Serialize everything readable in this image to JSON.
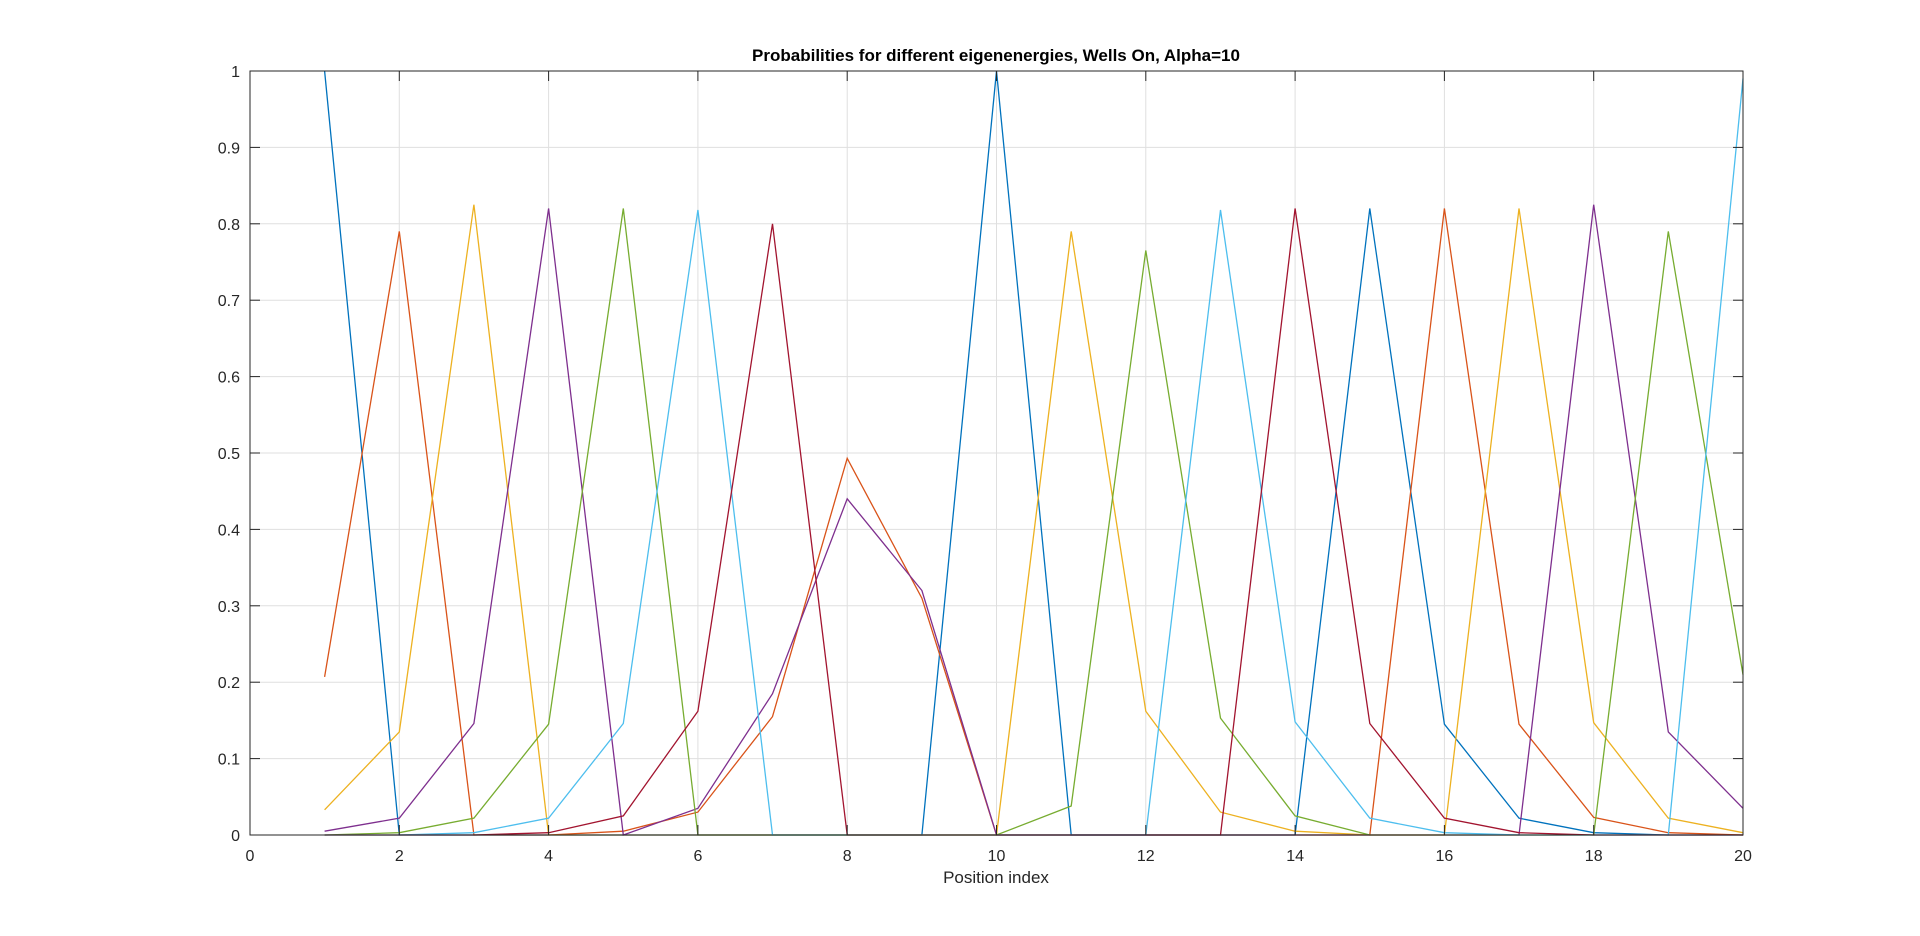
{
  "chart_data": {
    "type": "line",
    "title": "Probabilities for different eigenenergies, Wells On, Alpha=10",
    "xlabel": "Position index",
    "ylabel": "",
    "xlim": [
      0,
      20
    ],
    "ylim": [
      0,
      1
    ],
    "xticks": [
      0,
      2,
      4,
      6,
      8,
      10,
      12,
      14,
      16,
      18,
      20
    ],
    "yticks": [
      0,
      0.1,
      0.2,
      0.3,
      0.4,
      0.5,
      0.6,
      0.7,
      0.8,
      0.9,
      1
    ],
    "xtick_labels": [
      "0",
      "2",
      "4",
      "6",
      "8",
      "10",
      "12",
      "14",
      "16",
      "18",
      "20"
    ],
    "ytick_labels": [
      "0",
      "0.1",
      "0.2",
      "0.3",
      "0.4",
      "0.5",
      "0.6",
      "0.7",
      "0.8",
      "0.9",
      "1"
    ],
    "grid": true,
    "legend": "none",
    "x": [
      1,
      2,
      3,
      4,
      5,
      6,
      7,
      8,
      9,
      10,
      11,
      12,
      13,
      14,
      15,
      16,
      17,
      18,
      19,
      20
    ],
    "series": [
      {
        "color": "#0072BD",
        "values": [
          1.0,
          0.0,
          0.0,
          0.0,
          0.0,
          0.0,
          0.0,
          0.0,
          0.0,
          1.0,
          0.0,
          0.0,
          0.0,
          0.0,
          0.82,
          0.145,
          0.022,
          0.003,
          0.0,
          0.0
        ]
      },
      {
        "color": "#D95319",
        "values": [
          0.207,
          0.79,
          0.0,
          0.0,
          0.005,
          0.03,
          0.155,
          0.493,
          0.31,
          0.0,
          0.0,
          0.0,
          0.0,
          0.0,
          0.0,
          0.82,
          0.145,
          0.023,
          0.003,
          0.0
        ]
      },
      {
        "color": "#EDB120",
        "values": [
          0.033,
          0.135,
          0.825,
          0.0,
          0.0,
          0.0,
          0.0,
          0.0,
          0.0,
          0.0,
          0.79,
          0.162,
          0.03,
          0.005,
          0.0,
          0.0,
          0.82,
          0.147,
          0.022,
          0.003
        ]
      },
      {
        "color": "#7E2F8E",
        "values": [
          0.005,
          0.022,
          0.146,
          0.82,
          0.0,
          0.035,
          0.185,
          0.44,
          0.32,
          0.0,
          0.0,
          0.0,
          0.0,
          0.0,
          0.0,
          0.0,
          0.0,
          0.825,
          0.135,
          0.035
        ]
      },
      {
        "color": "#77AC30",
        "values": [
          0.0,
          0.003,
          0.022,
          0.145,
          0.82,
          0.0,
          0.0,
          0.0,
          0.0,
          0.0,
          0.038,
          0.765,
          0.153,
          0.025,
          0.0,
          0.0,
          0.0,
          0.0,
          0.79,
          0.21
        ]
      },
      {
        "color": "#4DBEEE",
        "values": [
          0.0,
          0.0,
          0.003,
          0.022,
          0.146,
          0.818,
          0.0,
          0.0,
          0.0,
          0.0,
          0.0,
          0.0,
          0.818,
          0.148,
          0.022,
          0.003,
          0.0,
          0.0,
          0.0,
          0.99
        ]
      },
      {
        "color": "#A2142F",
        "values": [
          0.0,
          0.0,
          0.0,
          0.003,
          0.025,
          0.162,
          0.8,
          0.0,
          0.0,
          0.0,
          0.0,
          0.0,
          0.0,
          0.82,
          0.146,
          0.022,
          0.003,
          0.0,
          0.0,
          0.0
        ]
      }
    ]
  }
}
